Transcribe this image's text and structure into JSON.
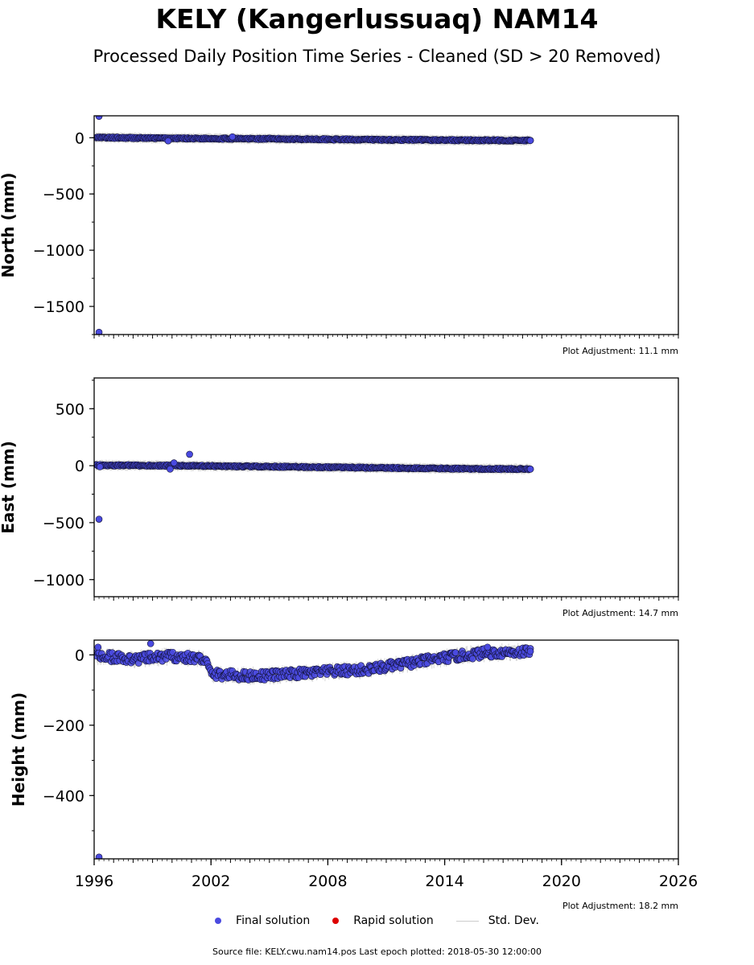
{
  "title": "KELY (Kangerlussuaq) NAM14",
  "subtitle": "Processed Daily Position Time Series - Cleaned (SD > 20 Removed)",
  "legend": {
    "final": "Final solution",
    "rapid": "Rapid solution",
    "std": "Std. Dev."
  },
  "source": "Source file: KELY.cwu.nam14.pos  Last epoch plotted: 2018-05-30 12:00:00",
  "colors": {
    "final": "#4a4ae0",
    "rapid": "#dd0000",
    "std": "#cccccc",
    "edge": "#111133"
  },
  "chart_data": [
    {
      "type": "scatter",
      "ylabel": "North (mm)",
      "xlim": [
        1996,
        2026
      ],
      "ylim": [
        -1750,
        195
      ],
      "yticks": [
        0,
        -500,
        -1000,
        -1500
      ],
      "adjustment": "Plot Adjustment: 11.1 mm",
      "trend": [
        [
          1996.0,
          2
        ],
        [
          2000,
          -5
        ],
        [
          2005,
          -10
        ],
        [
          2010,
          -17
        ],
        [
          2015,
          -22
        ],
        [
          2018.4,
          -25
        ]
      ],
      "noise": 6,
      "outliers": [
        [
          1996.25,
          190
        ],
        [
          1996.25,
          -1730
        ],
        [
          1999.8,
          -28
        ],
        [
          2003.1,
          8
        ],
        [
          2018.4,
          -25
        ]
      ]
    },
    {
      "type": "scatter",
      "ylabel": "East (mm)",
      "xlim": [
        1996,
        2026
      ],
      "ylim": [
        -1150,
        770
      ],
      "yticks": [
        500,
        0,
        -500,
        -1000
      ],
      "adjustment": "Plot Adjustment: 14.7 mm",
      "trend": [
        [
          1996.0,
          4
        ],
        [
          2000,
          0
        ],
        [
          2005,
          -8
        ],
        [
          2010,
          -18
        ],
        [
          2015,
          -27
        ],
        [
          2018.4,
          -30
        ]
      ],
      "noise": 6,
      "outliers": [
        [
          1996.25,
          -470
        ],
        [
          1996.3,
          -10
        ],
        [
          2000.9,
          100
        ],
        [
          1999.9,
          -30
        ],
        [
          2000.1,
          25
        ],
        [
          2018.4,
          -30
        ]
      ]
    },
    {
      "type": "scatter",
      "ylabel": "Height (mm)",
      "xlim": [
        1996,
        2026
      ],
      "ylim": [
        -580,
        42
      ],
      "yticks": [
        0,
        -200,
        -400
      ],
      "xticks": [
        1996,
        2002,
        2008,
        2014,
        2020,
        2026
      ],
      "adjustment": "Plot Adjustment: 18.2 mm",
      "trend": [
        [
          1996.0,
          -2
        ],
        [
          1998,
          -12
        ],
        [
          2000,
          -4
        ],
        [
          2001.7,
          -12
        ],
        [
          2002.0,
          -55
        ],
        [
          2004,
          -60
        ],
        [
          2006,
          -55
        ],
        [
          2008,
          -48
        ],
        [
          2010,
          -42
        ],
        [
          2012,
          -25
        ],
        [
          2014,
          -8
        ],
        [
          2016,
          5
        ],
        [
          2018.4,
          10
        ]
      ],
      "noise": 13,
      "outliers": [
        [
          1996.25,
          -575
        ],
        [
          1998.9,
          32
        ],
        [
          1996.2,
          22
        ],
        [
          2016.2,
          22
        ],
        [
          2018.4,
          10
        ]
      ]
    }
  ]
}
